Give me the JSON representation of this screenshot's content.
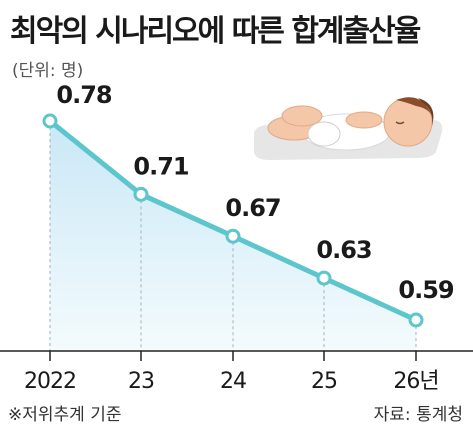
{
  "title": "최악의 시나리오에 따른 합계출산율",
  "unit_label": "(단위: 명)",
  "footnote": "※저위추계 기준",
  "source": "자료: 통계청",
  "colors": {
    "line": "#5cc6cc",
    "marker_fill": "#ffffff",
    "area_top": "#c9e8f6",
    "area_bottom": "#f4fbfd",
    "axis": "#222222"
  },
  "illustration": "sleeping-baby-icon",
  "chart_data": {
    "type": "line",
    "title": "최악의 시나리오에 따른 합계출산율",
    "ylabel": "",
    "xlabel": "",
    "unit": "명",
    "categories": [
      "2022",
      "23",
      "24",
      "25",
      "26년"
    ],
    "values": [
      0.78,
      0.71,
      0.67,
      0.63,
      0.59
    ],
    "data_labels": [
      "0.78",
      "0.71",
      "0.67",
      "0.63",
      "0.59"
    ],
    "ylim": [
      0.5,
      0.8
    ],
    "grid": false,
    "legend": "none"
  }
}
